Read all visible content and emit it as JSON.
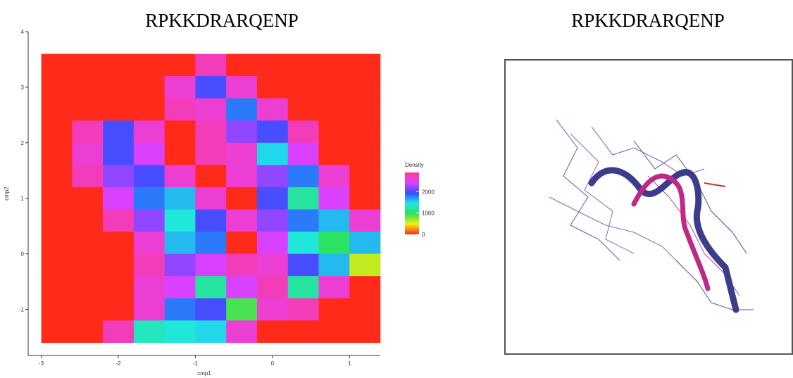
{
  "chart_data": [
    {
      "type": "heatmap",
      "title": "RPKKDRARQENP",
      "x_label": "cmp1",
      "y_label": "cmp2",
      "xlim": [
        -3.17,
        1.4
      ],
      "ylim": [
        -1.83,
        4
      ],
      "xticks": [
        -3,
        -2,
        -1,
        0,
        1
      ],
      "yticks": [
        -1,
        0,
        1,
        2,
        3,
        4
      ],
      "x_bins": [
        -3.0,
        -2.6,
        -2.2,
        -1.8,
        -1.4,
        -1.0,
        -0.6,
        -0.2,
        0.2,
        0.6,
        1.0,
        1.4
      ],
      "y_bins": [
        3.6,
        3.2,
        2.8,
        2.4,
        2.0,
        1.6,
        1.2,
        0.8,
        0.4,
        0.0,
        -0.4,
        -0.8,
        -1.2,
        -1.6
      ],
      "values": [
        [
          0,
          0,
          0,
          0,
          0,
          2700,
          0,
          0,
          0,
          0,
          0
        ],
        [
          0,
          0,
          0,
          0,
          2600,
          2000,
          2600,
          0,
          0,
          0,
          0
        ],
        [
          0,
          0,
          0,
          0,
          2700,
          2600,
          1800,
          2600,
          0,
          0,
          0
        ],
        [
          0,
          2700,
          2000,
          2600,
          0,
          2700,
          2200,
          2000,
          2700,
          0,
          0
        ],
        [
          0,
          2600,
          2000,
          2400,
          0,
          2700,
          2600,
          1500,
          2400,
          0,
          0
        ],
        [
          0,
          2700,
          2200,
          2000,
          2600,
          0,
          2600,
          2200,
          1800,
          2600,
          0
        ],
        [
          0,
          0,
          2400,
          1800,
          1600,
          2600,
          0,
          2000,
          1200,
          2400,
          0
        ],
        [
          0,
          0,
          2700,
          2200,
          1400,
          2000,
          2600,
          2200,
          1800,
          1600,
          2600
        ],
        [
          0,
          0,
          0,
          2600,
          1600,
          1800,
          0,
          2400,
          1400,
          1000,
          1600
        ],
        [
          0,
          0,
          0,
          2700,
          2200,
          2400,
          2700,
          2600,
          2000,
          1600,
          600
        ],
        [
          0,
          0,
          0,
          2600,
          2400,
          1200,
          2400,
          2700,
          1200,
          2600,
          0
        ],
        [
          0,
          0,
          0,
          2600,
          1800,
          2000,
          900,
          2600,
          2700,
          0,
          0
        ],
        [
          0,
          0,
          2700,
          1300,
          1400,
          1500,
          2600,
          0,
          0,
          0,
          0
        ]
      ],
      "legend_title": "Density",
      "clim": [
        0,
        2900
      ],
      "cticks": [
        0,
        1000,
        2000
      ],
      "colorscale": [
        "#ff2a1a",
        "#f3ee10",
        "#2ee05a",
        "#1ee8e8",
        "#3050ff",
        "#e040ff",
        "#ff3a8a"
      ]
    },
    {
      "type": "image",
      "title": "RPKKDRARQENP"
    }
  ]
}
